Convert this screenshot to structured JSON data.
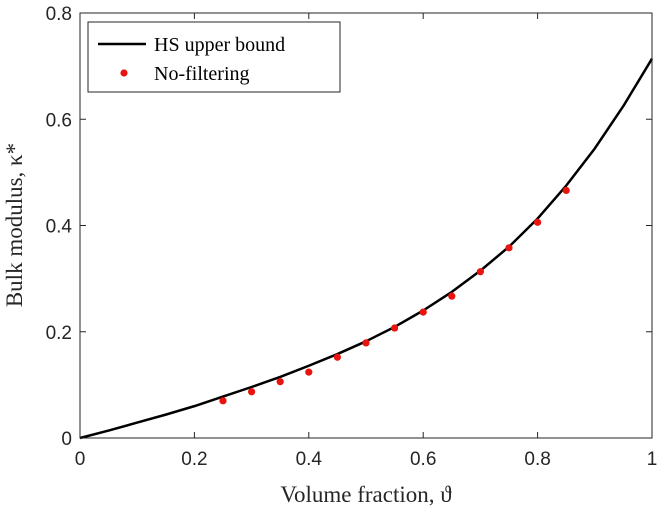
{
  "chart_data": {
    "type": "line",
    "xlabel": "Volume fraction, ϑ",
    "ylabel": "Bulk modulus, κ*",
    "xlim": [
      0,
      1
    ],
    "ylim": [
      0,
      0.8
    ],
    "x_ticks": [
      0,
      0.2,
      0.4,
      0.6,
      0.8,
      1
    ],
    "x_tick_labels": [
      "0",
      "0.2",
      "0.4",
      "0.6",
      "0.8",
      "1"
    ],
    "y_ticks": [
      0,
      0.2,
      0.4,
      0.6,
      0.8
    ],
    "y_tick_labels": [
      "0",
      "0.2",
      "0.4",
      "0.6",
      "0.8"
    ],
    "grid": false,
    "legend_position": "top-left",
    "series": [
      {
        "name": "HS upper bound",
        "style": "line",
        "color": "#000000",
        "x": [
          0,
          0.05,
          0.1,
          0.15,
          0.2,
          0.25,
          0.3,
          0.35,
          0.4,
          0.45,
          0.5,
          0.55,
          0.6,
          0.65,
          0.7,
          0.75,
          0.8,
          0.85,
          0.9,
          0.95,
          1.0
        ],
        "y": [
          0,
          0.014,
          0.029,
          0.044,
          0.06,
          0.078,
          0.096,
          0.115,
          0.136,
          0.158,
          0.182,
          0.209,
          0.24,
          0.275,
          0.315,
          0.36,
          0.413,
          0.475,
          0.545,
          0.625,
          0.714
        ]
      },
      {
        "name": "No-filtering",
        "style": "scatter",
        "color": "#e8140f",
        "x": [
          0.25,
          0.3,
          0.35,
          0.4,
          0.45,
          0.5,
          0.55,
          0.6,
          0.65,
          0.7,
          0.75,
          0.8,
          0.85
        ],
        "y": [
          0.07,
          0.087,
          0.106,
          0.124,
          0.152,
          0.179,
          0.207,
          0.237,
          0.267,
          0.313,
          0.358,
          0.406,
          0.466
        ]
      }
    ]
  }
}
